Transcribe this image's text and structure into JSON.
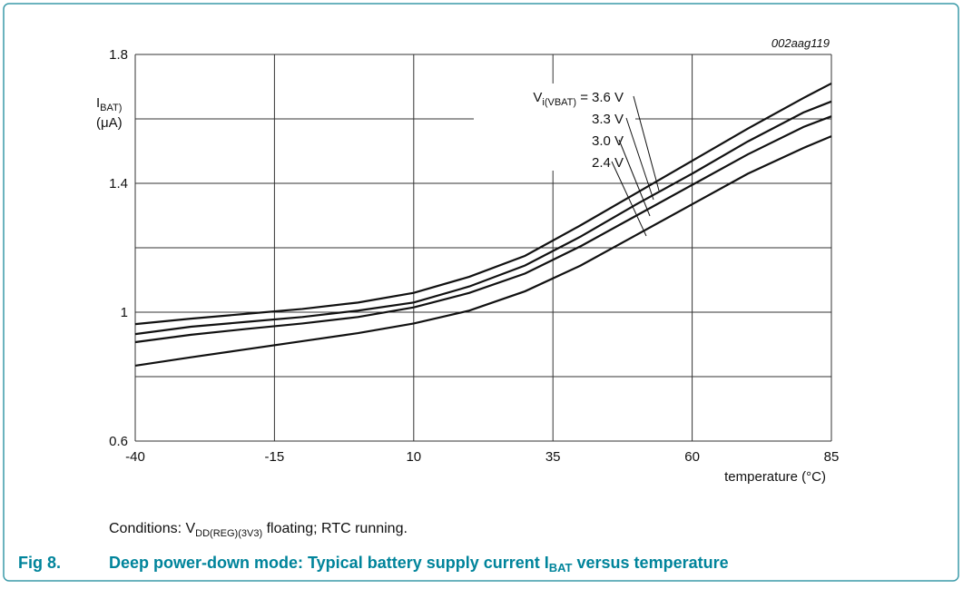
{
  "chart_data": {
    "type": "line",
    "code": "002aag119",
    "ylabel": {
      "main": "I",
      "sub": "BAT)",
      "unit": "(μA)"
    },
    "xlabel": "temperature (°C)",
    "legend_prefix": {
      "main": "V",
      "sub": "i(VBAT)",
      "eq": " = "
    },
    "x": [
      -40,
      -30,
      -20,
      -10,
      0,
      10,
      20,
      30,
      40,
      50,
      60,
      70,
      80,
      85
    ],
    "series": [
      {
        "name": "3.6 V",
        "color": "#111111",
        "values": [
          0.963,
          0.98,
          0.995,
          1.01,
          1.03,
          1.06,
          1.11,
          1.175,
          1.27,
          1.37,
          1.47,
          1.57,
          1.665,
          1.71
        ]
      },
      {
        "name": "3.3 V",
        "color": "#111111",
        "values": [
          0.932,
          0.955,
          0.97,
          0.985,
          1.005,
          1.03,
          1.08,
          1.145,
          1.235,
          1.335,
          1.43,
          1.53,
          1.62,
          1.654
        ]
      },
      {
        "name": "3.0 V",
        "color": "#111111",
        "values": [
          0.907,
          0.93,
          0.948,
          0.965,
          0.985,
          1.015,
          1.06,
          1.12,
          1.205,
          1.3,
          1.395,
          1.49,
          1.575,
          1.608
        ]
      },
      {
        "name": "2.4 V",
        "color": "#111111",
        "values": [
          0.834,
          0.86,
          0.885,
          0.91,
          0.935,
          0.965,
          1.005,
          1.065,
          1.145,
          1.24,
          1.335,
          1.43,
          1.51,
          1.546
        ]
      }
    ],
    "xlim": [
      -40,
      85
    ],
    "xticks": [
      -40,
      -15,
      10,
      35,
      60,
      85
    ],
    "ylim": [
      0.6,
      1.8
    ],
    "yticks": [
      0.6,
      1.0,
      1.4,
      1.8
    ],
    "yminor": [
      0.8,
      1.2,
      1.6
    ],
    "grid": true,
    "conditions": {
      "pre": "Conditions: V",
      "sub": "DD(REG)(3V3)",
      "post": " floating; RTC running."
    },
    "figure": {
      "number": "Fig 8.",
      "pre": "Deep power-down mode: Typical battery supply current I",
      "sub": "BAT",
      "post": " versus temperature"
    }
  }
}
